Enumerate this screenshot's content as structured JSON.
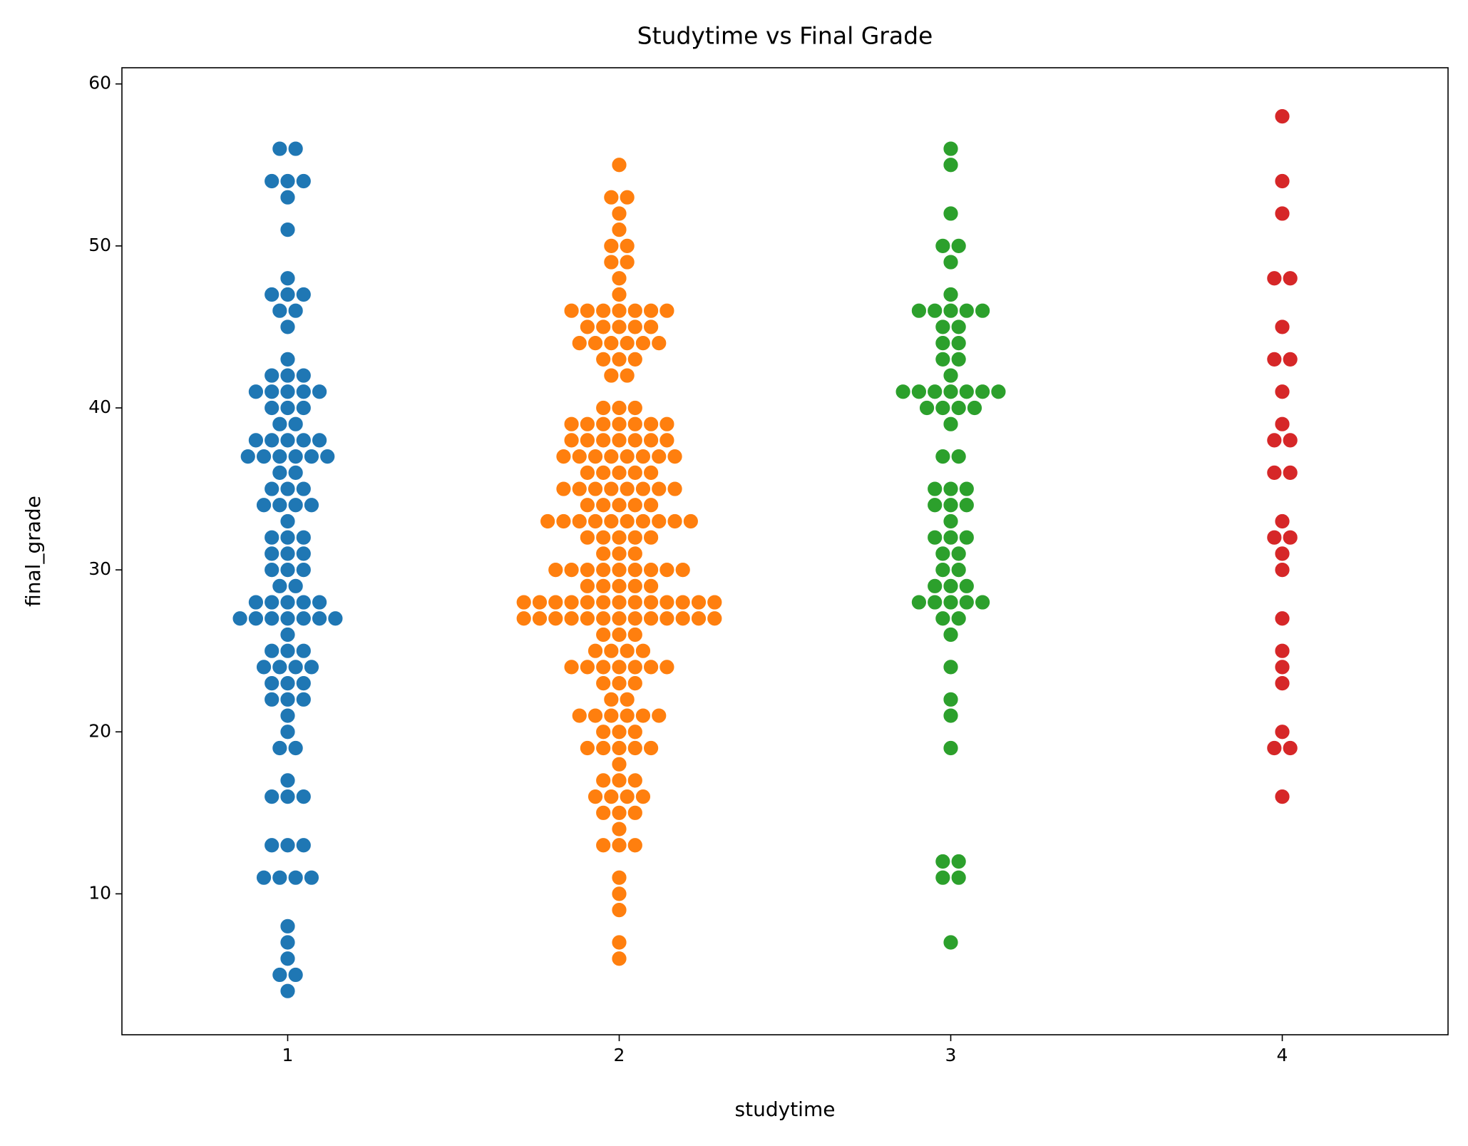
{
  "chart_data": {
    "type": "swarm",
    "title": "Studytime vs Final Grade",
    "x_label": "studytime",
    "y_label": "final_grade",
    "categories": [
      "1",
      "2",
      "3",
      "4"
    ],
    "ylim": [
      1.3,
      61.0
    ],
    "yticks": [
      10,
      20,
      30,
      40,
      50,
      60
    ],
    "groups": [
      {
        "color": "#1f77b4",
        "values": [
          4,
          5,
          5,
          6,
          7,
          8,
          11,
          11,
          11,
          11,
          13,
          13,
          13,
          16,
          16,
          16,
          17,
          19,
          19,
          20,
          21,
          22,
          22,
          22,
          23,
          23,
          23,
          24,
          24,
          24,
          24,
          25,
          25,
          25,
          26,
          27,
          27,
          27,
          27,
          27,
          27,
          27,
          28,
          28,
          28,
          28,
          28,
          29,
          29,
          30,
          30,
          30,
          31,
          31,
          31,
          32,
          32,
          32,
          33,
          34,
          34,
          34,
          34,
          35,
          35,
          35,
          36,
          36,
          37,
          37,
          37,
          37,
          37,
          37,
          38,
          38,
          38,
          38,
          38,
          39,
          39,
          40,
          40,
          40,
          41,
          41,
          41,
          41,
          41,
          42,
          42,
          42,
          43,
          45,
          46,
          46,
          47,
          47,
          47,
          48,
          51,
          53,
          54,
          54,
          54,
          56,
          56
        ]
      },
      {
        "color": "#ff7f0e",
        "values": [
          6,
          7,
          9,
          10,
          11,
          13,
          13,
          13,
          14,
          15,
          15,
          15,
          16,
          16,
          16,
          16,
          17,
          17,
          17,
          18,
          19,
          19,
          19,
          19,
          19,
          20,
          20,
          20,
          21,
          21,
          21,
          21,
          21,
          21,
          22,
          22,
          23,
          23,
          23,
          24,
          24,
          24,
          24,
          24,
          24,
          24,
          25,
          25,
          25,
          25,
          26,
          26,
          26,
          27,
          27,
          27,
          27,
          27,
          27,
          27,
          27,
          27,
          27,
          27,
          27,
          27,
          28,
          28,
          28,
          28,
          28,
          28,
          28,
          28,
          28,
          28,
          28,
          28,
          28,
          29,
          29,
          29,
          29,
          29,
          30,
          30,
          30,
          30,
          30,
          30,
          30,
          30,
          30,
          31,
          31,
          31,
          32,
          32,
          32,
          32,
          32,
          33,
          33,
          33,
          33,
          33,
          33,
          33,
          33,
          33,
          33,
          34,
          34,
          34,
          34,
          34,
          35,
          35,
          35,
          35,
          35,
          35,
          35,
          35,
          36,
          36,
          36,
          36,
          36,
          37,
          37,
          37,
          37,
          37,
          37,
          37,
          37,
          38,
          38,
          38,
          38,
          38,
          38,
          38,
          39,
          39,
          39,
          39,
          39,
          39,
          39,
          40,
          40,
          40,
          42,
          42,
          43,
          43,
          43,
          44,
          44,
          44,
          44,
          44,
          44,
          45,
          45,
          45,
          45,
          45,
          46,
          46,
          46,
          46,
          46,
          46,
          46,
          47,
          48,
          49,
          49,
          50,
          50,
          51,
          52,
          53,
          53,
          55
        ]
      },
      {
        "color": "#2ca02c",
        "values": [
          7,
          11,
          11,
          12,
          12,
          19,
          21,
          22,
          24,
          26,
          27,
          27,
          28,
          28,
          28,
          28,
          28,
          29,
          29,
          29,
          30,
          30,
          31,
          31,
          32,
          32,
          32,
          33,
          34,
          34,
          34,
          35,
          35,
          35,
          37,
          37,
          39,
          40,
          40,
          40,
          40,
          41,
          41,
          41,
          41,
          41,
          41,
          41,
          42,
          43,
          43,
          44,
          44,
          45,
          45,
          46,
          46,
          46,
          46,
          46,
          47,
          49,
          50,
          50,
          52,
          55,
          56
        ]
      },
      {
        "color": "#d62728",
        "values": [
          16,
          19,
          19,
          20,
          23,
          24,
          25,
          27,
          30,
          31,
          32,
          32,
          33,
          36,
          36,
          38,
          38,
          39,
          41,
          43,
          43,
          45,
          48,
          48,
          52,
          54,
          58
        ]
      }
    ]
  }
}
